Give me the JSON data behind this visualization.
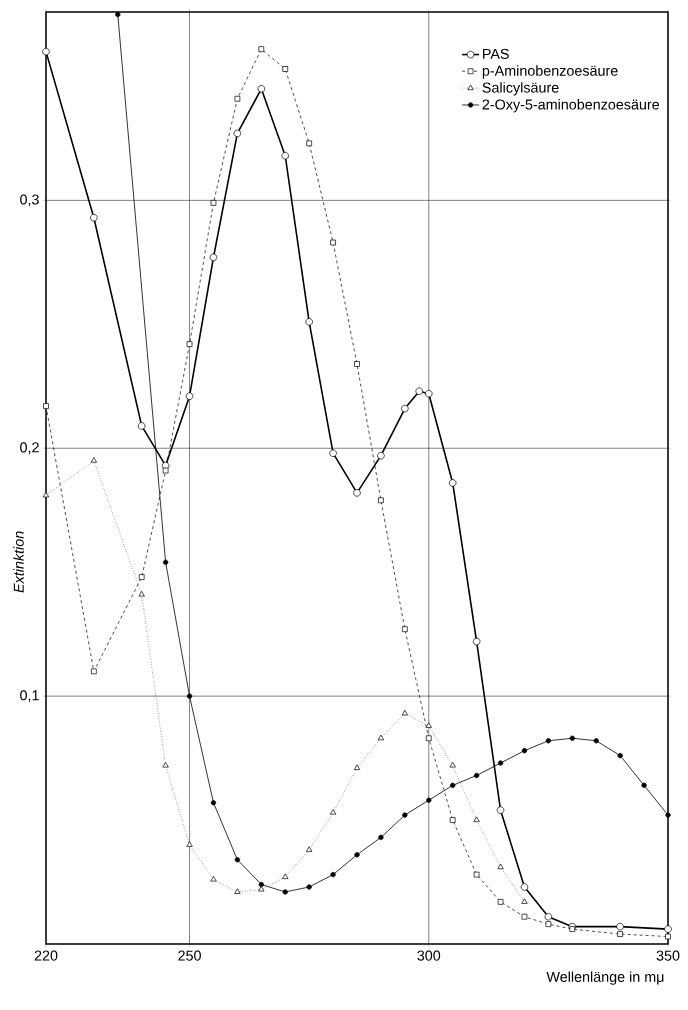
{
  "chart_data": {
    "type": "line",
    "xlabel": "Wellenlänge in mμ",
    "ylabel": "Extinktion",
    "xlim": [
      220,
      350
    ],
    "ylim": [
      0,
      0.376
    ],
    "xticks": [
      220,
      250,
      300,
      350
    ],
    "yticks": [
      {
        "value": 0.1,
        "label": "0,1"
      },
      {
        "value": 0.2,
        "label": "0,2"
      },
      {
        "value": 0.3,
        "label": "0,3"
      }
    ],
    "grid": true,
    "legend": "top right",
    "series": [
      {
        "name": "PAS",
        "color": "#000000",
        "marker": "circle",
        "line_style": "solid",
        "x": [
          220,
          230,
          240,
          245,
          250,
          255,
          260,
          265,
          270,
          275,
          280,
          285,
          290,
          295,
          298,
          300,
          305,
          310,
          315,
          320,
          325,
          330,
          340,
          350
        ],
        "values": [
          0.36,
          0.293,
          0.209,
          0.193,
          0.221,
          0.277,
          0.327,
          0.345,
          0.318,
          0.251,
          0.198,
          0.182,
          0.197,
          0.216,
          0.223,
          0.222,
          0.186,
          0.122,
          0.054,
          0.023,
          0.011,
          0.007,
          0.007,
          0.006
        ]
      },
      {
        "name": "p-Aminobenzoesäure",
        "color": "#000000",
        "marker": "square",
        "line_style": "dashed",
        "x": [
          220,
          230,
          240,
          245,
          250,
          255,
          260,
          265,
          270,
          275,
          280,
          285,
          290,
          295,
          300,
          305,
          310,
          315,
          320,
          325,
          330,
          340,
          350
        ],
        "values": [
          0.217,
          0.11,
          0.148,
          0.191,
          0.242,
          0.299,
          0.341,
          0.361,
          0.353,
          0.323,
          0.283,
          0.234,
          0.179,
          0.127,
          0.083,
          0.05,
          0.028,
          0.017,
          0.011,
          0.008,
          0.006,
          0.004,
          0.003
        ]
      },
      {
        "name": "Salicylsäure",
        "color": "#000000",
        "marker": "triangle",
        "line_style": "dotted",
        "x": [
          220,
          230,
          240,
          245,
          250,
          255,
          260,
          265,
          270,
          275,
          280,
          285,
          290,
          295,
          300,
          305,
          310,
          315,
          320
        ],
        "values": [
          0.181,
          0.195,
          0.141,
          0.072,
          0.04,
          0.026,
          0.021,
          0.022,
          0.027,
          0.038,
          0.053,
          0.071,
          0.083,
          0.093,
          0.088,
          0.072,
          0.05,
          0.031,
          0.017
        ]
      },
      {
        "name": "2-Oxy-5-aminobenzoesäure",
        "color": "#000000",
        "marker": "circle",
        "line_style": "solid",
        "x": [
          235,
          245,
          250,
          255,
          260,
          265,
          270,
          275,
          280,
          285,
          290,
          295,
          300,
          305,
          310,
          315,
          320,
          325,
          330,
          335,
          340,
          345,
          350
        ],
        "values": [
          0.375,
          0.154,
          0.1,
          0.057,
          0.034,
          0.024,
          0.021,
          0.023,
          0.028,
          0.036,
          0.043,
          0.052,
          0.058,
          0.064,
          0.068,
          0.073,
          0.078,
          0.082,
          0.083,
          0.082,
          0.076,
          0.064,
          0.052
        ]
      }
    ]
  }
}
